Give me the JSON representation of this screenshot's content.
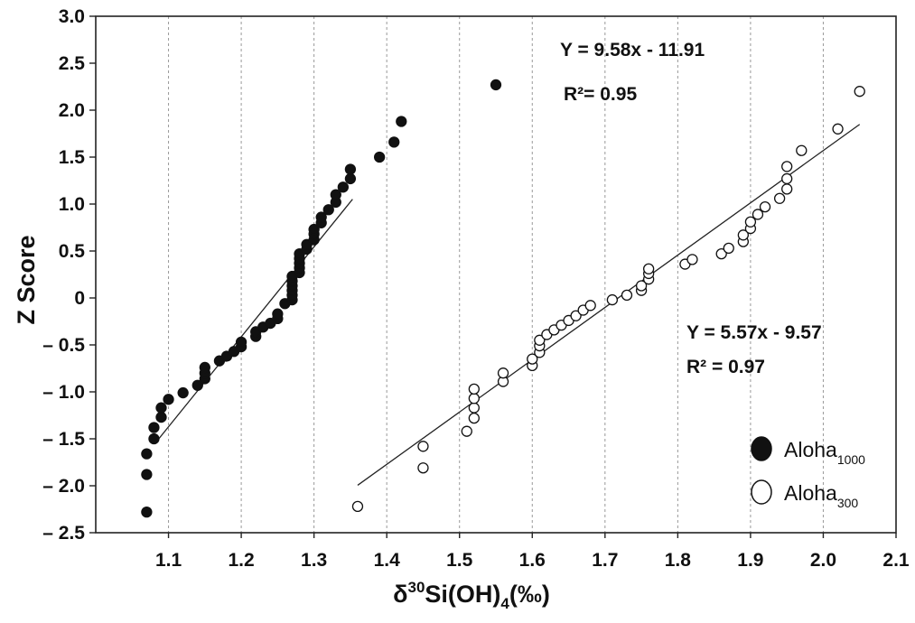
{
  "chart_data": {
    "type": "scatter",
    "xlabel": "δ30Si(OH)4(‰)",
    "xlabel_parts": {
      "delta": "δ",
      "sup": "30",
      "base": "Si(OH)",
      "sub": "4",
      "unit": "(‰)"
    },
    "ylabel": "Z Score",
    "xlim": [
      1.0,
      2.1
    ],
    "ylim": [
      -2.5,
      3.0
    ],
    "x_ticks": [
      1.1,
      1.2,
      1.3,
      1.4,
      1.5,
      1.6,
      1.7,
      1.8,
      1.9,
      2.0,
      2.1
    ],
    "x_tick_labels": [
      "1.1",
      "1.2",
      "1.3",
      "1.4",
      "1.5",
      "1.6",
      "1.7",
      "1.8",
      "1.9",
      "2.0",
      "2.1"
    ],
    "y_ticks": [
      3.0,
      2.5,
      2.0,
      1.5,
      1.0,
      0.5,
      0,
      -0.5,
      -1.0,
      -1.5,
      -2.0,
      -2.5
    ],
    "y_tick_labels": [
      "3.0",
      "2.5",
      "2.0",
      "1.5",
      "1.0",
      "0.5",
      "0",
      "– 0.5",
      "– 1.0",
      "– 1.5",
      "– 2.0",
      "– 2.5"
    ],
    "grid": "vertical dashed",
    "legend_position": "bottom-right",
    "series": [
      {
        "name": "Aloha1000",
        "name_base": "Aloha",
        "name_sub": "1000",
        "marker": "filled-circle",
        "color": "#111111",
        "points": [
          [
            1.07,
            -2.28
          ],
          [
            1.07,
            -1.88
          ],
          [
            1.07,
            -1.66
          ],
          [
            1.08,
            -1.5
          ],
          [
            1.08,
            -1.38
          ],
          [
            1.09,
            -1.27
          ],
          [
            1.09,
            -1.17
          ],
          [
            1.1,
            -1.08
          ],
          [
            1.12,
            -1.01
          ],
          [
            1.14,
            -0.93
          ],
          [
            1.15,
            -0.86
          ],
          [
            1.15,
            -0.8
          ],
          [
            1.15,
            -0.74
          ],
          [
            1.17,
            -0.67
          ],
          [
            1.18,
            -0.62
          ],
          [
            1.19,
            -0.57
          ],
          [
            1.2,
            -0.52
          ],
          [
            1.2,
            -0.47
          ],
          [
            1.22,
            -0.41
          ],
          [
            1.22,
            -0.36
          ],
          [
            1.23,
            -0.31
          ],
          [
            1.24,
            -0.27
          ],
          [
            1.25,
            -0.22
          ],
          [
            1.25,
            -0.17
          ],
          [
            1.26,
            -0.06
          ],
          [
            1.27,
            -0.02
          ],
          [
            1.27,
            0.03
          ],
          [
            1.27,
            0.08
          ],
          [
            1.27,
            0.13
          ],
          [
            1.27,
            0.18
          ],
          [
            1.27,
            0.23
          ],
          [
            1.28,
            0.27
          ],
          [
            1.28,
            0.32
          ],
          [
            1.28,
            0.37
          ],
          [
            1.28,
            0.42
          ],
          [
            1.28,
            0.47
          ],
          [
            1.29,
            0.52
          ],
          [
            1.29,
            0.57
          ],
          [
            1.3,
            0.62
          ],
          [
            1.3,
            0.68
          ],
          [
            1.3,
            0.73
          ],
          [
            1.31,
            0.8
          ],
          [
            1.31,
            0.86
          ],
          [
            1.32,
            0.94
          ],
          [
            1.33,
            1.02
          ],
          [
            1.33,
            1.1
          ],
          [
            1.34,
            1.18
          ],
          [
            1.35,
            1.27
          ],
          [
            1.35,
            1.37
          ],
          [
            1.39,
            1.5
          ],
          [
            1.41,
            1.66
          ],
          [
            1.42,
            1.88
          ],
          [
            1.55,
            2.27
          ]
        ],
        "fit": {
          "slope": 9.58,
          "intercept": -11.91,
          "x_range": [
            1.085,
            1.353
          ],
          "equation": "Y = 9.58x - 11.91",
          "r2": "R²= 0.95",
          "r2_value": 0.95
        }
      },
      {
        "name": "Aloha300",
        "name_base": "Aloha",
        "name_sub": "300",
        "marker": "open-circle",
        "color": "#111111",
        "points": [
          [
            1.36,
            -2.22
          ],
          [
            1.45,
            -1.81
          ],
          [
            1.45,
            -1.58
          ],
          [
            1.51,
            -1.42
          ],
          [
            1.52,
            -1.28
          ],
          [
            1.52,
            -1.17
          ],
          [
            1.52,
            -1.07
          ],
          [
            1.52,
            -0.97
          ],
          [
            1.56,
            -0.89
          ],
          [
            1.56,
            -0.8
          ],
          [
            1.6,
            -0.72
          ],
          [
            1.6,
            -0.65
          ],
          [
            1.61,
            -0.58
          ],
          [
            1.61,
            -0.51
          ],
          [
            1.61,
            -0.45
          ],
          [
            1.62,
            -0.39
          ],
          [
            1.63,
            -0.34
          ],
          [
            1.64,
            -0.29
          ],
          [
            1.65,
            -0.24
          ],
          [
            1.66,
            -0.19
          ],
          [
            1.67,
            -0.13
          ],
          [
            1.68,
            -0.08
          ],
          [
            1.71,
            -0.02
          ],
          [
            1.73,
            0.03
          ],
          [
            1.75,
            0.08
          ],
          [
            1.75,
            0.13
          ],
          [
            1.76,
            0.2
          ],
          [
            1.76,
            0.26
          ],
          [
            1.76,
            0.31
          ],
          [
            1.81,
            0.36
          ],
          [
            1.82,
            0.41
          ],
          [
            1.86,
            0.47
          ],
          [
            1.87,
            0.53
          ],
          [
            1.89,
            0.6
          ],
          [
            1.89,
            0.67
          ],
          [
            1.9,
            0.74
          ],
          [
            1.9,
            0.81
          ],
          [
            1.91,
            0.89
          ],
          [
            1.92,
            0.97
          ],
          [
            1.94,
            1.06
          ],
          [
            1.95,
            1.16
          ],
          [
            1.95,
            1.27
          ],
          [
            1.95,
            1.4
          ],
          [
            1.97,
            1.57
          ],
          [
            2.02,
            1.8
          ],
          [
            2.05,
            2.2
          ]
        ],
        "fit": {
          "slope": 5.57,
          "intercept": -9.57,
          "x_range": [
            1.36,
            2.05
          ],
          "equation": "Y = 5.57x - 9.57",
          "r2": "R² = 0.97",
          "r2_value": 0.97
        }
      }
    ]
  }
}
